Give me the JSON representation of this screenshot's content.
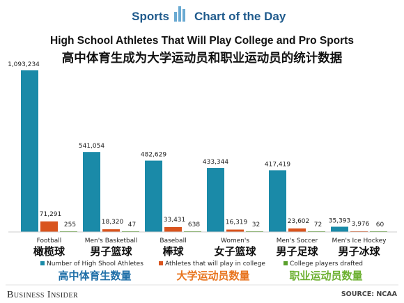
{
  "header": {
    "left_text": "Sports",
    "right_text": "Chart of the Day"
  },
  "footer": {
    "brand": "Business Insider",
    "source": "SOURCE: NCAA"
  },
  "colors": {
    "high_school": "#1a8aa8",
    "college": "#d9541e",
    "drafted": "#5aa02c",
    "header_blue": "#1f5a8c",
    "header_icon": "#6aaad2",
    "legend_cn_1": "#1f6fa8",
    "legend_cn_2": "#e8741e",
    "legend_cn_3": "#6cb030"
  },
  "chart_data": {
    "type": "bar",
    "title": "High School Athletes That Will Play College and Pro Sports",
    "subtitle": "高中体育生成为大学运动员和职业运动员的统计数据",
    "categories": [
      {
        "en": "Football",
        "cn": "橄榄球"
      },
      {
        "en": "Men's Basketball",
        "cn": "男子篮球"
      },
      {
        "en": "Baseball",
        "cn": "棒球"
      },
      {
        "en": "Women's",
        "cn": "女子篮球"
      },
      {
        "en": "Men's Soccer",
        "cn": "男子足球"
      },
      {
        "en": "Men's Ice Hockey",
        "cn": "男子冰球"
      }
    ],
    "series": [
      {
        "name": "Number of High Shool Athletes",
        "name_cn": "高中体育生数量",
        "values": [
          1093234,
          541054,
          482629,
          433344,
          417419,
          35393
        ],
        "labels": [
          "1,093,234",
          "541,054",
          "482,629",
          "433,344",
          "417,419",
          "35,393"
        ]
      },
      {
        "name": "Athletes that will play in college",
        "name_cn": "大学运动员数量",
        "values": [
          71291,
          18320,
          33431,
          16319,
          23602,
          3976
        ],
        "labels": [
          "71,291",
          "18,320",
          "33,431",
          "16,319",
          "23,602",
          "3,976"
        ]
      },
      {
        "name": "College players drafted",
        "name_cn": "职业运动员数量",
        "values": [
          255,
          47,
          638,
          32,
          72,
          60
        ],
        "labels": [
          "255",
          "47",
          "638",
          "32",
          "72",
          "60"
        ]
      }
    ],
    "ylim": [
      0,
      1093234
    ],
    "grid": false,
    "legend": "bottom"
  }
}
